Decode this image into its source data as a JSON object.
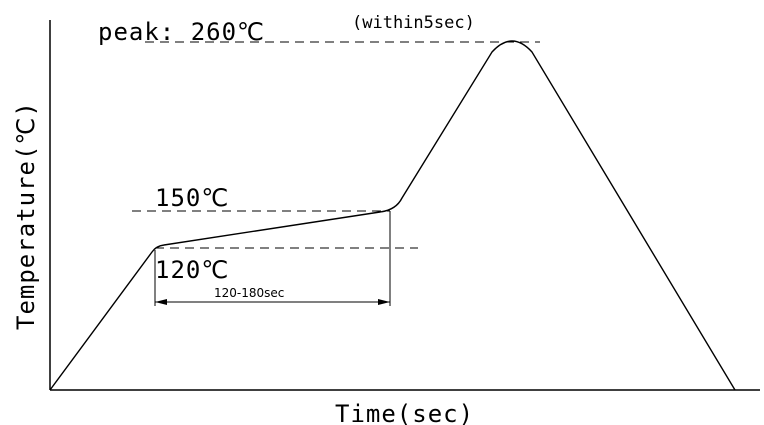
{
  "chart_data": {
    "type": "line",
    "title": "",
    "xlabel": "Time(sec)",
    "ylabel": "Temperature(℃)",
    "series": [
      {
        "points": [
          {
            "stage": "start",
            "temp_c": 20
          },
          {
            "stage": "preheat_start",
            "temp_c": 120
          },
          {
            "stage": "preheat_end",
            "temp_c": 150
          },
          {
            "stage": "peak",
            "temp_c": 260
          },
          {
            "stage": "end",
            "temp_c": 20
          }
        ]
      }
    ],
    "annotations": {
      "peak_label": "peak: 260℃",
      "peak_note": "(within5sec)",
      "preheat_high": "150℃",
      "preheat_low": "120℃",
      "preheat_duration": "120-180sec"
    },
    "grid": false,
    "legend": "none"
  }
}
